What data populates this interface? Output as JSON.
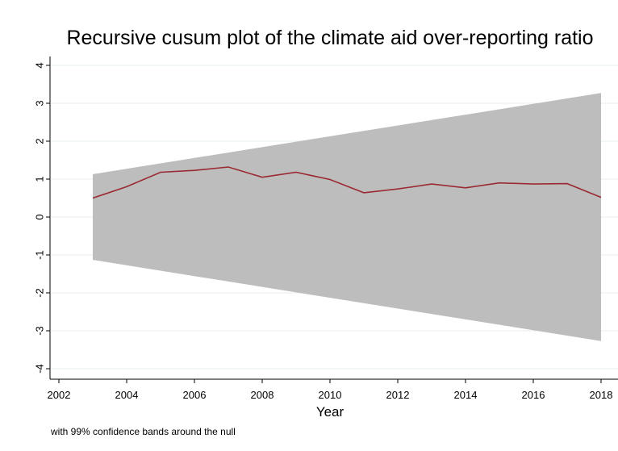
{
  "chart_data": {
    "type": "line",
    "title": "Recursive cusum plot of the climate aid over-reporting ratio",
    "xlabel": "Year",
    "ylabel": "",
    "note": "with 99% confidence bands around the null",
    "xlim": [
      2002,
      2018
    ],
    "ylim": [
      -4,
      4
    ],
    "xticks": [
      2002,
      2004,
      2006,
      2008,
      2010,
      2012,
      2014,
      2016,
      2018
    ],
    "yticks": [
      -4,
      -3,
      -2,
      -1,
      0,
      1,
      2,
      3,
      4
    ],
    "grid": true,
    "x": [
      2003,
      2004,
      2005,
      2006,
      2007,
      2008,
      2009,
      2010,
      2011,
      2012,
      2013,
      2014,
      2015,
      2016,
      2017,
      2018
    ],
    "series": [
      {
        "values": [
          0.5,
          0.8,
          1.18,
          1.23,
          1.32,
          1.05,
          1.18,
          0.99,
          0.64,
          0.74,
          0.87,
          0.77,
          0.9,
          0.87,
          0.88,
          0.52
        ]
      }
    ],
    "band": {
      "upper": {
        "x": [
          2003,
          2018
        ],
        "y": [
          1.13,
          3.27
        ]
      },
      "lower": {
        "x": [
          2003,
          2018
        ],
        "y": [
          -1.13,
          -3.27
        ]
      }
    },
    "colors": {
      "line": "#9a2a33",
      "band": "#bdbdbd",
      "grid": "#e6ecef",
      "background": "#ffffff"
    }
  }
}
